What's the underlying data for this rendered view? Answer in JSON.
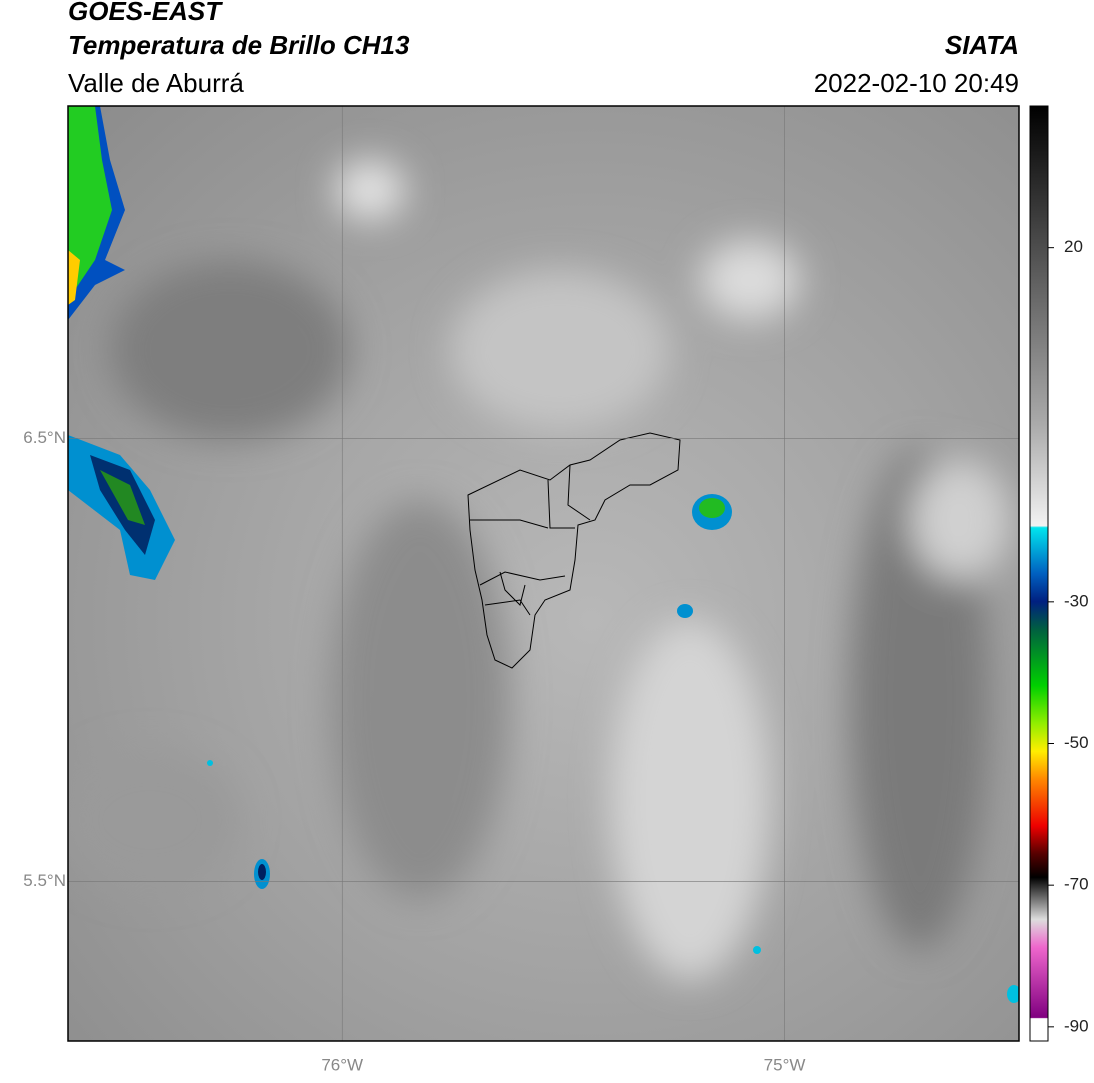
{
  "header": {
    "title": "GOES-EAST",
    "subtitle": "Temperatura de Brillo CH13",
    "region": "Valle de Aburrá",
    "source": "SIATA",
    "datetime": "2022-02-10 20:49"
  },
  "map": {
    "lonlim": [
      -76.62,
      -74.47
    ],
    "latlim": [
      5.14,
      7.25
    ],
    "lat_ticks": [
      {
        "value": 6.5,
        "label": "6.5°N"
      },
      {
        "value": 5.5,
        "label": "5.5°N"
      }
    ],
    "lon_ticks": [
      {
        "value": -76,
        "label": "76°W"
      },
      {
        "value": -75,
        "label": "75°W"
      }
    ]
  },
  "colorbar": {
    "lim": [
      -92,
      40
    ],
    "ticks": [
      20,
      -30,
      -50,
      -70,
      -90
    ]
  }
}
